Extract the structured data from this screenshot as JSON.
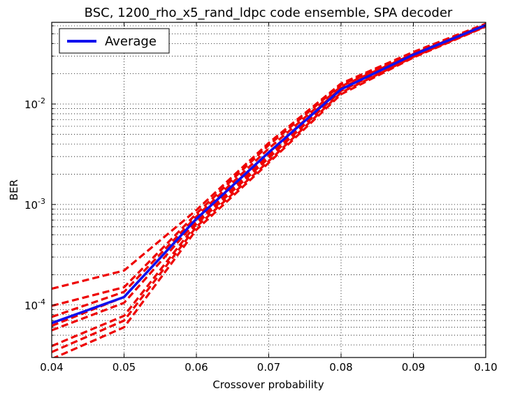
{
  "chart_data": {
    "type": "line",
    "title": "BSC, 1200_rho_x5_rand_ldpc code ensemble, SPA decoder",
    "xlabel": "Crossover probability",
    "ylabel": "BER",
    "xlim": [
      0.04,
      0.1
    ],
    "ylim": [
      3e-05,
      0.065
    ],
    "yscale": "log",
    "grid": true,
    "legend_position": "top-left",
    "xticks": [
      "0.04",
      "0.05",
      "0.06",
      "0.07",
      "0.08",
      "0.09",
      "0.10"
    ],
    "yticks": [
      {
        "base": "10",
        "exp": "-4",
        "value": 0.0001
      },
      {
        "base": "10",
        "exp": "-3",
        "value": 0.001
      },
      {
        "base": "10",
        "exp": "-2",
        "value": 0.01
      }
    ],
    "x": [
      0.04,
      0.05,
      0.06,
      0.07,
      0.08,
      0.09,
      0.1
    ],
    "series": [
      {
        "name": "Average",
        "color": "#1111ee",
        "style": "solid",
        "values": [
          6.6e-05,
          0.00012,
          0.00072,
          0.0033,
          0.014,
          0.031,
          0.061
        ]
      },
      {
        "color": "#ee0000",
        "style": "dashed",
        "values": [
          0.000145,
          0.00022,
          0.00088,
          0.0041,
          0.016,
          0.033,
          0.063
        ]
      },
      {
        "color": "#ee0000",
        "style": "dashed",
        "values": [
          9.8e-05,
          0.00015,
          0.00081,
          0.0039,
          0.0155,
          0.032,
          0.062
        ]
      },
      {
        "color": "#ee0000",
        "style": "dashed",
        "values": [
          7.6e-05,
          0.000135,
          0.00076,
          0.0036,
          0.015,
          0.0315,
          0.0615
        ]
      },
      {
        "color": "#ee0000",
        "style": "dashed",
        "values": [
          6.2e-05,
          0.00012,
          0.00072,
          0.0033,
          0.0145,
          0.031,
          0.061
        ]
      },
      {
        "color": "#ee0000",
        "style": "dashed",
        "values": [
          5.6e-05,
          0.000105,
          0.00068,
          0.0031,
          0.014,
          0.0305,
          0.0605
        ]
      },
      {
        "color": "#ee0000",
        "style": "dashed",
        "values": [
          3.9e-05,
          7.8e-05,
          0.00064,
          0.0029,
          0.0135,
          0.03,
          0.06
        ]
      },
      {
        "color": "#ee0000",
        "style": "dashed",
        "values": [
          3.4e-05,
          7e-05,
          0.0006,
          0.0027,
          0.013,
          0.0295,
          0.0595
        ]
      },
      {
        "color": "#ee0000",
        "style": "dashed",
        "values": [
          2.9e-05,
          6e-05,
          0.00056,
          0.0026,
          0.0125,
          0.029,
          0.059
        ]
      }
    ]
  }
}
